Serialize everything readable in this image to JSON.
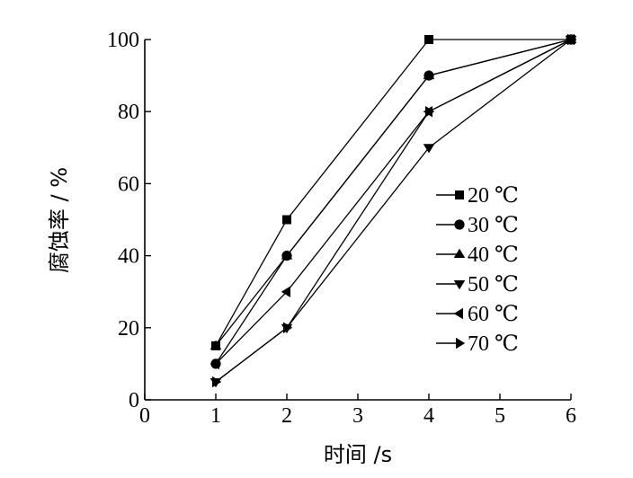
{
  "chart_data": {
    "type": "line",
    "xlabel": "时间 /s",
    "ylabel": "腐蚀率 / %",
    "x_ticks": [
      "0",
      "1",
      "2",
      "3",
      "4",
      "5",
      "6"
    ],
    "y_ticks": [
      "0",
      "20",
      "40",
      "60",
      "80",
      "100"
    ],
    "xlim": [
      0,
      6
    ],
    "ylim": [
      0,
      100
    ],
    "grid": false,
    "legend_position": "right",
    "x": [
      1,
      2,
      4,
      6
    ],
    "series": [
      {
        "name": "20 ℃",
        "marker": "square",
        "values": [
          15,
          50,
          100,
          100
        ]
      },
      {
        "name": "30 ℃",
        "marker": "circle",
        "values": [
          10,
          40,
          90,
          100
        ]
      },
      {
        "name": "40 ℃",
        "marker": "triangle-up",
        "values": [
          15,
          40,
          90,
          100
        ]
      },
      {
        "name": "50 ℃",
        "marker": "triangle-down",
        "values": [
          5,
          20,
          70,
          100
        ]
      },
      {
        "name": "60 ℃",
        "marker": "triangle-left",
        "values": [
          10,
          30,
          80,
          100
        ]
      },
      {
        "name": "70 ℃",
        "marker": "triangle-right",
        "values": [
          5,
          20,
          80,
          100
        ]
      }
    ]
  }
}
